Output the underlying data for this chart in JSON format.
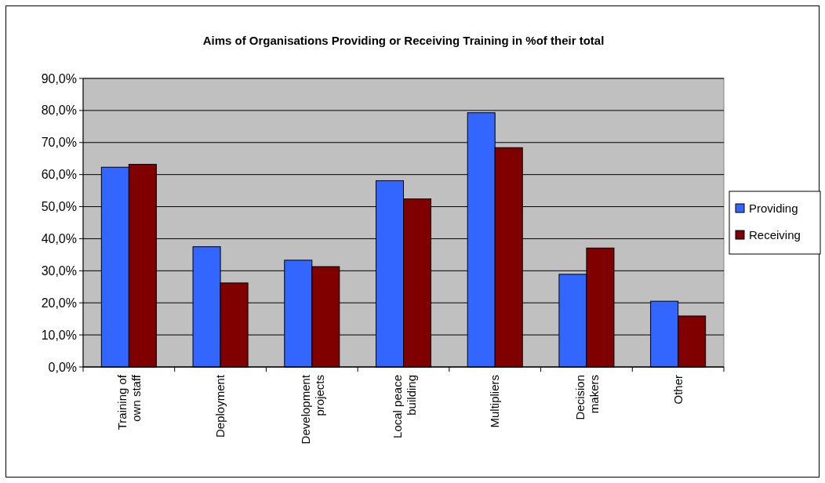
{
  "chart_data": {
    "type": "bar",
    "title": "Aims of Organisations Providing or Receiving Training in %of their total",
    "categories": [
      "Training of own staff",
      "Deployment",
      "Development projects",
      "Local peace building",
      "Multipliers",
      "Decision makers",
      "Other"
    ],
    "series": [
      {
        "name": "Providing",
        "color": "#3366ff",
        "values": [
          62.3,
          37.5,
          33.3,
          58.1,
          79.3,
          28.9,
          20.5
        ]
      },
      {
        "name": "Receiving",
        "color": "#800000",
        "values": [
          63.2,
          26.2,
          31.3,
          52.4,
          68.4,
          37.1,
          15.9
        ]
      }
    ],
    "ylim": [
      0,
      90
    ],
    "yticks": [
      {
        "value": 0,
        "label": "0,0%"
      },
      {
        "value": 10,
        "label": "10,0%"
      },
      {
        "value": 20,
        "label": "20,0%"
      },
      {
        "value": 30,
        "label": "30,0%"
      },
      {
        "value": 40,
        "label": "40,0%"
      },
      {
        "value": 50,
        "label": "50,0%"
      },
      {
        "value": 60,
        "label": "60,0%"
      },
      {
        "value": 70,
        "label": "70,0%"
      },
      {
        "value": 80,
        "label": "80,0%"
      },
      {
        "value": 90,
        "label": "90,0%"
      }
    ],
    "grid": "y",
    "legend": "right"
  }
}
